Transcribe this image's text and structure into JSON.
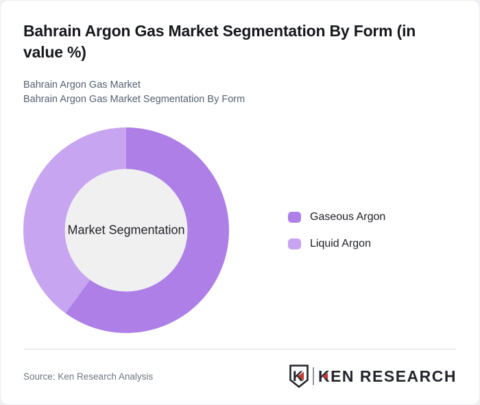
{
  "header": {
    "title": "Bahrain Argon Gas Market Segmentation By Form (in value %)",
    "subtitle_line1": "Bahrain Argon Gas Market",
    "subtitle_line2": "Bahrain Argon Gas Market Segmentation By Form"
  },
  "chart_data": {
    "type": "pie",
    "donut": true,
    "title": "Bahrain Argon Gas Market Segmentation By Form (in value %)",
    "center_label": "Market Segmentation",
    "segments": [
      {
        "label": "Gaseous Argon",
        "value": 60,
        "color": "#ad7fe7"
      },
      {
        "label": "Liquid Argon",
        "value": 40,
        "color": "#c8a5f0"
      }
    ],
    "values_estimated_from_arc_angles": true,
    "start_angle_deg": 0,
    "direction": "clockwise",
    "legend_position": "right",
    "hole_color": "#f0f0f1"
  },
  "footer": {
    "source_text": "Source: Ken Research Analysis",
    "logo": {
      "mark_letter": "K",
      "text": "KEN RESEARCH",
      "accent_color": "#c13a30",
      "ink_color": "#23252d"
    }
  }
}
